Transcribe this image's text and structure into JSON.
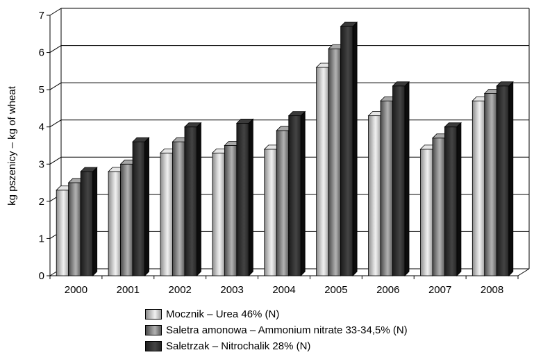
{
  "chart_data": {
    "type": "bar",
    "title": "",
    "xlabel": "",
    "ylabel": "kg pszenicy – kg of wheat",
    "categories": [
      "2000",
      "2001",
      "2002",
      "2003",
      "2004",
      "2005",
      "2006",
      "2007",
      "2008"
    ],
    "ylim": [
      0,
      7
    ],
    "yticks": [
      "0",
      "1",
      "2",
      "3",
      "4",
      "5",
      "6",
      "7"
    ],
    "grid": true,
    "legend_position": "bottom",
    "series": [
      {
        "name": "Mocznik – Urea 46% (N)",
        "values": [
          2.3,
          2.8,
          3.3,
          3.3,
          3.4,
          5.6,
          4.3,
          3.4,
          4.7
        ],
        "color": "#c8c8c8"
      },
      {
        "name": "Saletra amonowa – Ammonium nitrate 33-34,5% (N)",
        "values": [
          2.5,
          3.0,
          3.6,
          3.5,
          3.9,
          6.1,
          4.7,
          3.7,
          4.9
        ],
        "color": "#8c8c8c"
      },
      {
        "name": "Saletrzak – Nitrochalik 28% (N)",
        "values": [
          2.8,
          3.6,
          4.0,
          4.1,
          4.3,
          6.7,
          5.1,
          4.0,
          5.1
        ],
        "color": "#333333"
      }
    ]
  }
}
